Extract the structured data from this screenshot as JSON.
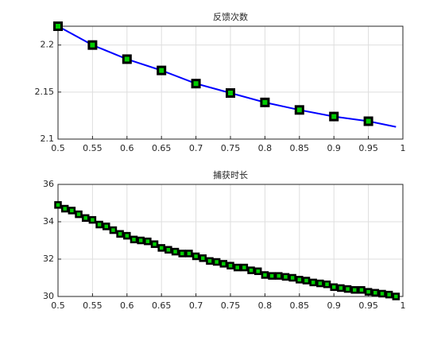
{
  "chart_data": [
    {
      "type": "line",
      "title": "反馈次数",
      "x": [
        0.5,
        0.55,
        0.6,
        0.65,
        0.7,
        0.75,
        0.8,
        0.85,
        0.9,
        0.95,
        0.99
      ],
      "series": [
        {
          "color": "#0000ff",
          "values": [
            2.22,
            2.2,
            2.185,
            2.173,
            2.159,
            2.149,
            2.139,
            2.131,
            2.124,
            2.119,
            2.113
          ]
        },
        {
          "marker": "square",
          "marker_edge": "#000000",
          "marker_face": "#00cc00",
          "values": [
            2.22,
            2.2,
            2.185,
            2.173,
            2.159,
            2.149,
            2.139,
            2.131,
            2.124,
            2.119,
            null
          ]
        }
      ],
      "xlim": [
        0.5,
        1
      ],
      "xticks": [
        0.5,
        0.55,
        0.6,
        0.65,
        0.7,
        0.75,
        0.8,
        0.85,
        0.9,
        0.95,
        1
      ],
      "ylim": [
        2.1,
        2.22
      ],
      "yticks": [
        2.1,
        2.15,
        2.2
      ],
      "grid": true
    },
    {
      "type": "line",
      "title": "捕获时长",
      "x": [
        0.5,
        0.51,
        0.52,
        0.53,
        0.54,
        0.55,
        0.56,
        0.57,
        0.58,
        0.59,
        0.6,
        0.61,
        0.62,
        0.63,
        0.64,
        0.65,
        0.66,
        0.67,
        0.68,
        0.69,
        0.7,
        0.71,
        0.72,
        0.73,
        0.74,
        0.75,
        0.76,
        0.77,
        0.78,
        0.79,
        0.8,
        0.81,
        0.82,
        0.83,
        0.84,
        0.85,
        0.86,
        0.87,
        0.88,
        0.89,
        0.9,
        0.91,
        0.92,
        0.93,
        0.94,
        0.95,
        0.96,
        0.97,
        0.98,
        0.99
      ],
      "series": [
        {
          "color": "#0000ff",
          "marker": "square",
          "marker_edge": "#000000",
          "marker_face": "#00cc00",
          "values": [
            34.9,
            34.7,
            34.6,
            34.4,
            34.2,
            34.1,
            33.85,
            33.75,
            33.55,
            33.35,
            33.25,
            33.05,
            33.0,
            32.95,
            32.8,
            32.6,
            32.5,
            32.4,
            32.3,
            32.3,
            32.15,
            32.05,
            31.9,
            31.85,
            31.75,
            31.65,
            31.55,
            31.55,
            31.4,
            31.35,
            31.15,
            31.1,
            31.1,
            31.05,
            31.0,
            30.9,
            30.85,
            30.75,
            30.7,
            30.65,
            30.5,
            30.45,
            30.4,
            30.35,
            30.35,
            30.25,
            30.2,
            30.15,
            30.1,
            30.0
          ]
        }
      ],
      "xlim": [
        0.5,
        1
      ],
      "xticks": [
        0.5,
        0.55,
        0.6,
        0.65,
        0.7,
        0.75,
        0.8,
        0.85,
        0.9,
        0.95,
        1
      ],
      "ylim": [
        30,
        36
      ],
      "yticks": [
        30,
        32,
        34,
        36
      ],
      "grid": true
    }
  ]
}
